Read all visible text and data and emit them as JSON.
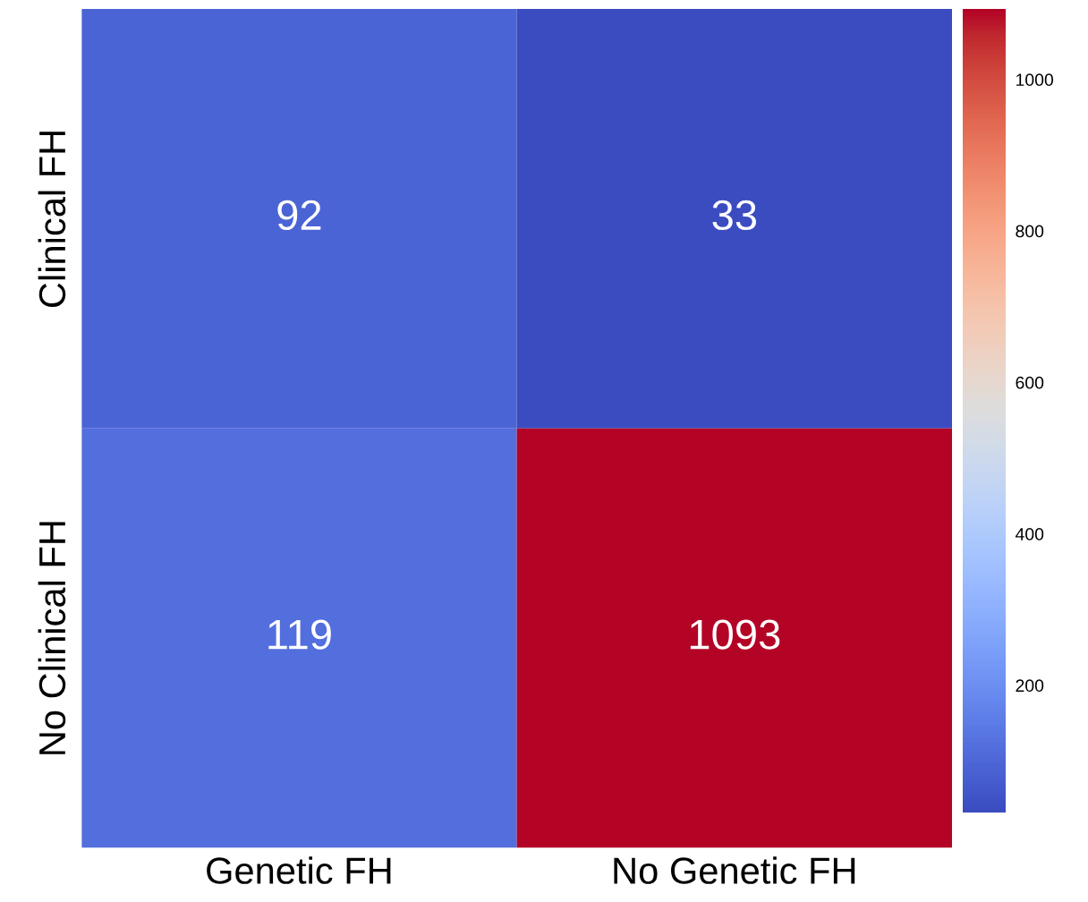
{
  "chart_data": {
    "type": "heatmap",
    "categories": [
      "Genetic FH",
      "No Genetic FH"
    ],
    "y_categories": [
      "Clinical FH",
      "No Clinical FH"
    ],
    "cells": [
      [
        92,
        33
      ],
      [
        119,
        1093
      ]
    ],
    "clim": [
      33,
      1093
    ],
    "cticks": [
      200,
      400,
      600,
      800,
      1000
    ],
    "data_labels": true
  }
}
